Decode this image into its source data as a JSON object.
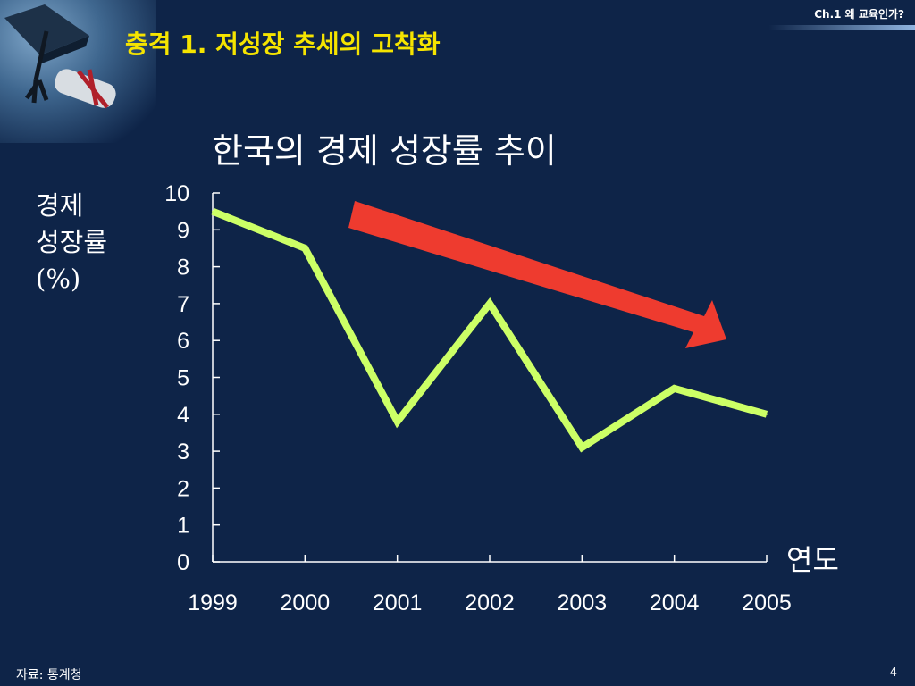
{
  "header": {
    "title": "충격 1. 저성장 추세의 고착화",
    "chapter": "Ch.1 왜 교육인가?"
  },
  "colors": {
    "background": "#0e2448",
    "title_yellow": "#f5e400",
    "line": "#ccff66",
    "arrow": "#ee3b2f"
  },
  "chart_data": {
    "type": "line",
    "title": "한국의 경제 성장률 추이",
    "xlabel": "연도",
    "ylabel_lines": [
      "경제",
      "성장률",
      "(%)"
    ],
    "categories": [
      "1999",
      "2000",
      "2001",
      "2002",
      "2003",
      "2004",
      "2005"
    ],
    "series": [
      {
        "values": [
          9.5,
          8.5,
          3.8,
          7.0,
          3.1,
          4.7,
          4.0
        ]
      }
    ],
    "ylim": [
      0,
      10
    ],
    "yticks": [
      "0",
      "1",
      "2",
      "3",
      "4",
      "5",
      "6",
      "7",
      "8",
      "9",
      "10"
    ],
    "grid": false,
    "annotation": "downward-trend-arrow"
  },
  "footer": {
    "source": "자료: 통계청",
    "page": "4"
  }
}
